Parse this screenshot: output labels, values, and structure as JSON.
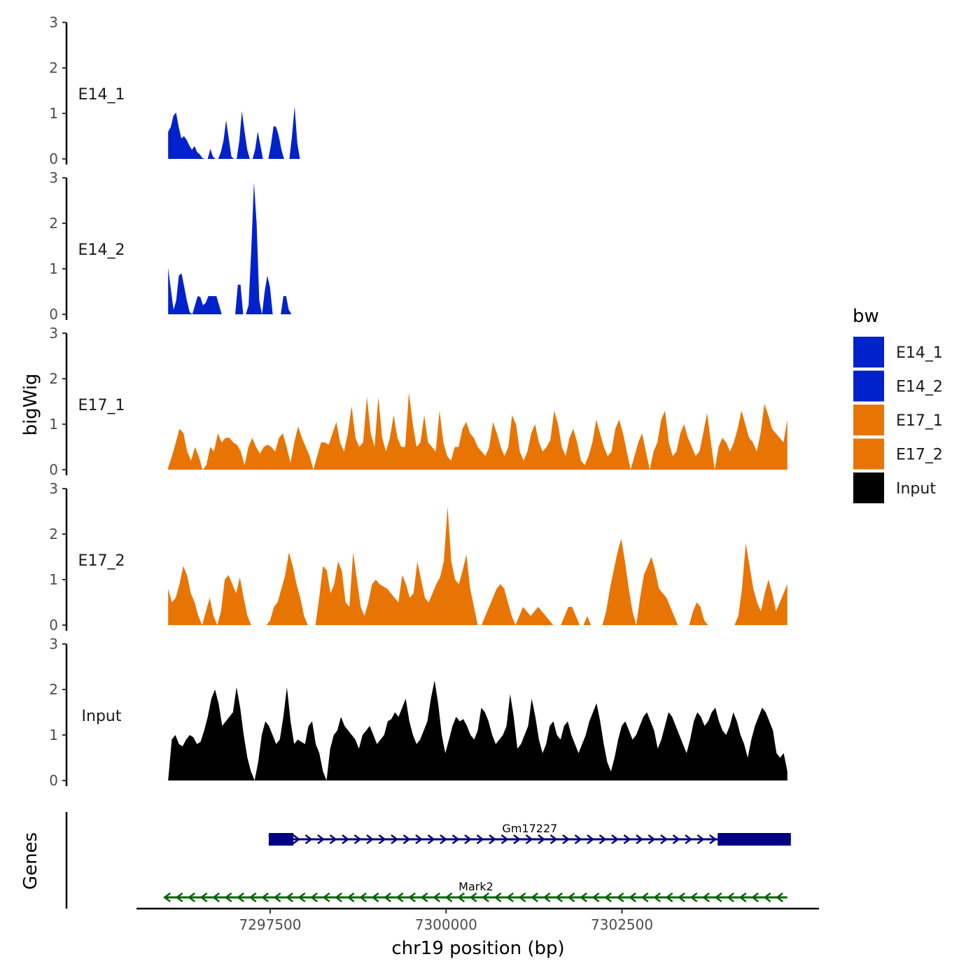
{
  "chart_data": {
    "type": "area",
    "ylabel": "bigWig",
    "xlabel": "chr19 position (bp)",
    "genes_label": "Genes",
    "xlim": [
      7295600,
      7305300
    ],
    "x_ticks": [
      7297500,
      7300000,
      7302500
    ],
    "x_tick_labels": [
      "7297500",
      "7300000",
      "7302500"
    ],
    "ylim": [
      0,
      3
    ],
    "y_ticks": [
      0,
      1,
      2,
      3
    ],
    "y_tick_labels": [
      "0",
      "1",
      "2",
      "3"
    ],
    "x_start": 7296050,
    "x_end": 7304850,
    "tracks": [
      {
        "name": "E14_1",
        "color": "#0022CC",
        "values": [
          0.6,
          0.7,
          0.95,
          1.02,
          0.7,
          0.45,
          0.5,
          0.42,
          0.3,
          0.2,
          0.28,
          0.15,
          0.1,
          0.02,
          0.0,
          0.0,
          0.22,
          0.05,
          0.0,
          0.0,
          0.15,
          0.4,
          0.85,
          0.45,
          0.05,
          0.0,
          0.0,
          0.4,
          1.05,
          0.6,
          0.2,
          0.0,
          0.0,
          0.2,
          0.6,
          0.3,
          0.0,
          0.0,
          0.0,
          0.3,
          0.72,
          0.7,
          0.5,
          0.2,
          0.0,
          0.0,
          0.0,
          0.5,
          1.15,
          0.35,
          0.0,
          0.0,
          0.0,
          0.0,
          0.0,
          0.0,
          0.0,
          0.0,
          0.0,
          0.0,
          0.0,
          0.0,
          0.0,
          0.0,
          0.0,
          0.0,
          0.0,
          0.0,
          0.0,
          0.0,
          0.0,
          0.0,
          0.0,
          0.0,
          0.0,
          0.0,
          0.0,
          0.0,
          0.0,
          0.0,
          0.0,
          0.0,
          0.0,
          0.0,
          0.0,
          0.0,
          0.0,
          0.0,
          0.0,
          0.0,
          0.0,
          0.0,
          0.0,
          0.0,
          0.0,
          0.0,
          0.0,
          0.0,
          0.0,
          0.0,
          0.0,
          0.0,
          0.0,
          0.0,
          0.0,
          0.0,
          0.0,
          0.0,
          0.0,
          0.0,
          0.0,
          0.0,
          0.0,
          0.0,
          0.0,
          0.0,
          0.0,
          0.0,
          0.0,
          0.0,
          0.0,
          0.0,
          0.0,
          0.0,
          0.0,
          0.0,
          0.0,
          0.0,
          0.0,
          0.0,
          0.0,
          0.0,
          0.0,
          0.0,
          0.0,
          0.0,
          0.0,
          0.0,
          0.0,
          0.0,
          0.0,
          0.0,
          0.0,
          0.0,
          0.0,
          0.0,
          0.0,
          0.0,
          0.0,
          0.0,
          0.0,
          0.0,
          0.0,
          0.0,
          0.0,
          0.0,
          0.0,
          0.0,
          0.0,
          0.0,
          0.0,
          0.0,
          0.0,
          0.0,
          0.0,
          0.0,
          0.0,
          0.0,
          0.0,
          0.0,
          0.0,
          0.0,
          0.0,
          0.0,
          0.0,
          0.0,
          0.0,
          0.0,
          0.0,
          0.0,
          0.0,
          0.0,
          0.0,
          0.0,
          0.0,
          0.0,
          0.0,
          0.0,
          0.0,
          0.0,
          0.0,
          0.0,
          0.0,
          0.0,
          0.0,
          0.0,
          0.0,
          0.0,
          0.0,
          0.0,
          0.0,
          0.0,
          0.0,
          0.0,
          0.0,
          0.0,
          0.0,
          0.0,
          0.0,
          0.0,
          0.0,
          0.0,
          0.0,
          0.0,
          0.0,
          0.0,
          0.0,
          0.0,
          0.0,
          0.0,
          0.0,
          0.0,
          0.0,
          0.0,
          0.0,
          0.0,
          0.0,
          0.0,
          0.0,
          0.0,
          0.0,
          0.0,
          0.0,
          0.0,
          0.0,
          0.0
        ]
      },
      {
        "name": "E14_2",
        "color": "#0022CC",
        "values": [
          1.02,
          0.55,
          0.1,
          0.3,
          0.85,
          0.9,
          0.6,
          0.3,
          0.05,
          0.0,
          0.2,
          0.4,
          0.38,
          0.2,
          0.25,
          0.4,
          0.4,
          0.4,
          0.4,
          0.2,
          0.0,
          0.0,
          0.0,
          0.0,
          0.0,
          0.0,
          0.65,
          0.65,
          0.0,
          0.0,
          0.2,
          1.4,
          2.9,
          2.0,
          0.3,
          0.0,
          0.5,
          0.85,
          0.6,
          0.0,
          0.0,
          0.0,
          0.0,
          0.4,
          0.4,
          0.1,
          0.0,
          0.0,
          0.0,
          0.0,
          0.0,
          0.0,
          0.0,
          0.0,
          0.0,
          0.0,
          0.0,
          0.0,
          0.0,
          0.0,
          0.0,
          0.0,
          0.0,
          0.0,
          0.0,
          0.0,
          0.0,
          0.0,
          0.0,
          0.0,
          0.0,
          0.0,
          0.0,
          0.0,
          0.0,
          0.0,
          0.0,
          0.0,
          0.0,
          0.0,
          0.0,
          0.0,
          0.0,
          0.0,
          0.0,
          0.0,
          0.0,
          0.0,
          0.0,
          0.0,
          0.0,
          0.0,
          0.0,
          0.0,
          0.0,
          0.0,
          0.0,
          0.0,
          0.0,
          0.0,
          0.0,
          0.0,
          0.0,
          0.0,
          0.0,
          0.0,
          0.0,
          0.0,
          0.0,
          0.0,
          0.0,
          0.0,
          0.0,
          0.0,
          0.0,
          0.0,
          0.0,
          0.0,
          0.0,
          0.0,
          0.0,
          0.0,
          0.0,
          0.0,
          0.0,
          0.0,
          0.0,
          0.0,
          0.0,
          0.0,
          0.0,
          0.0,
          0.0,
          0.0,
          0.0,
          0.0,
          0.0,
          0.0,
          0.0,
          0.0,
          0.0,
          0.0,
          0.0,
          0.0,
          0.0,
          0.0,
          0.0,
          0.0,
          0.0,
          0.0,
          0.0,
          0.0,
          0.0,
          0.0,
          0.0,
          0.0,
          0.0,
          0.0,
          0.0,
          0.0,
          0.0,
          0.0,
          0.0,
          0.0,
          0.0,
          0.0,
          0.0,
          0.0,
          0.0,
          0.0,
          0.0,
          0.0,
          0.0,
          0.0,
          0.0,
          0.0,
          0.0,
          0.0,
          0.0,
          0.0,
          0.0,
          0.0,
          0.0,
          0.0,
          0.0,
          0.0,
          0.0,
          0.0,
          0.0,
          0.0,
          0.0,
          0.0,
          0.0,
          0.0,
          0.0,
          0.0,
          0.0,
          0.0,
          0.0,
          0.0,
          0.0,
          0.0,
          0.0,
          0.0,
          0.0,
          0.0,
          0.0,
          0.0,
          0.0,
          0.0,
          0.0,
          0.0,
          0.0,
          0.0,
          0.0,
          0.0,
          0.0,
          0.0,
          0.0,
          0.0,
          0.0,
          0.0,
          0.0,
          0.0,
          0.0,
          0.0,
          0.0,
          0.0,
          0.0,
          0.0,
          0.0,
          0.0
        ]
      },
      {
        "name": "E17_1",
        "color": "#E87503",
        "values": [
          0.05,
          0.3,
          0.6,
          0.9,
          0.8,
          0.4,
          0.2,
          0.5,
          0.3,
          0.0,
          0.1,
          0.5,
          0.4,
          0.8,
          0.6,
          0.7,
          0.7,
          0.6,
          0.55,
          0.4,
          0.1,
          0.5,
          0.7,
          0.5,
          0.35,
          0.5,
          0.55,
          0.5,
          0.4,
          0.7,
          0.8,
          0.5,
          0.15,
          0.6,
          0.95,
          0.7,
          0.5,
          0.3,
          0.0,
          0.3,
          0.6,
          0.6,
          0.55,
          0.8,
          1.05,
          0.6,
          0.4,
          0.8,
          1.4,
          0.7,
          0.5,
          0.6,
          1.6,
          0.8,
          0.5,
          1.6,
          0.7,
          0.4,
          0.7,
          1.2,
          0.7,
          0.5,
          0.5,
          1.7,
          1.0,
          0.5,
          0.6,
          1.2,
          0.6,
          0.5,
          0.4,
          1.3,
          0.6,
          0.3,
          0.2,
          0.5,
          0.5,
          0.9,
          1.05,
          0.8,
          0.7,
          0.5,
          0.4,
          0.3,
          0.5,
          1.05,
          0.8,
          0.5,
          0.3,
          0.5,
          1.2,
          1.0,
          0.4,
          0.2,
          0.4,
          0.8,
          1.0,
          0.6,
          0.4,
          0.5,
          0.65,
          1.3,
          1.0,
          0.5,
          0.3,
          0.7,
          0.9,
          0.6,
          0.2,
          0.1,
          0.3,
          0.6,
          1.1,
          0.8,
          0.5,
          0.3,
          0.4,
          0.9,
          1.1,
          0.8,
          0.4,
          0.0,
          0.3,
          0.6,
          0.8,
          0.4,
          0.0,
          0.4,
          0.6,
          1.1,
          1.3,
          0.6,
          0.3,
          0.4,
          0.8,
          1.0,
          0.7,
          0.5,
          0.3,
          0.4,
          0.8,
          1.25,
          0.6,
          0.0,
          0.5,
          0.7,
          0.6,
          0.4,
          0.6,
          0.9,
          1.3,
          1.0,
          0.7,
          0.6,
          0.4,
          0.8,
          1.45,
          1.2,
          0.9,
          0.8,
          0.7,
          0.6,
          1.1
        ]
      },
      {
        "name": "E17_2",
        "color": "#E87503",
        "values": [
          0.8,
          0.5,
          0.6,
          0.9,
          1.3,
          1.1,
          0.7,
          0.5,
          0.2,
          0.0,
          0.3,
          0.6,
          0.2,
          0.0,
          0.3,
          1.0,
          1.1,
          0.9,
          0.7,
          1.05,
          0.6,
          0.2,
          0.0,
          0.0,
          0.0,
          0.0,
          0.0,
          0.1,
          0.4,
          0.5,
          0.8,
          1.1,
          1.6,
          1.3,
          0.9,
          0.6,
          0.2,
          0.0,
          0.0,
          0.0,
          0.6,
          1.3,
          1.2,
          0.7,
          0.9,
          1.4,
          1.2,
          0.5,
          0.4,
          1.6,
          1.0,
          0.4,
          0.2,
          0.5,
          0.9,
          1.0,
          0.9,
          0.85,
          0.8,
          0.7,
          0.6,
          0.5,
          1.1,
          0.9,
          0.6,
          0.7,
          1.4,
          1.0,
          0.6,
          0.5,
          0.7,
          0.9,
          1.05,
          1.4,
          2.6,
          1.4,
          1.0,
          0.9,
          1.2,
          1.55,
          0.8,
          0.4,
          0.0,
          0.0,
          0.2,
          0.4,
          0.6,
          0.8,
          0.9,
          0.8,
          0.5,
          0.2,
          0.0,
          0.2,
          0.4,
          0.3,
          0.2,
          0.3,
          0.4,
          0.3,
          0.2,
          0.1,
          0.0,
          0.0,
          0.0,
          0.2,
          0.4,
          0.4,
          0.2,
          0.0,
          0.0,
          0.2,
          0.0,
          0.0,
          0.0,
          0.0,
          0.3,
          0.8,
          1.2,
          1.6,
          1.9,
          1.4,
          0.8,
          0.3,
          0.0,
          0.6,
          1.1,
          1.3,
          1.5,
          1.2,
          0.8,
          0.7,
          0.6,
          0.4,
          0.2,
          0.0,
          0.0,
          0.0,
          0.0,
          0.3,
          0.5,
          0.4,
          0.1,
          0.0,
          0.0,
          0.0,
          0.0,
          0.0,
          0.0,
          0.0,
          0.0,
          0.2,
          0.8,
          1.8,
          1.3,
          0.8,
          0.5,
          0.3,
          0.7,
          1.0,
          0.7,
          0.3,
          0.5,
          0.7,
          0.9
        ]
      },
      {
        "name": "Input",
        "color": "#000000",
        "values": [
          0.0,
          0.9,
          1.0,
          0.8,
          0.75,
          0.9,
          1.0,
          0.95,
          0.8,
          0.85,
          1.1,
          1.4,
          1.8,
          2.0,
          1.7,
          1.2,
          1.3,
          1.4,
          1.5,
          2.05,
          1.6,
          1.0,
          0.5,
          0.2,
          0.0,
          0.4,
          1.0,
          1.3,
          1.2,
          1.0,
          0.8,
          0.9,
          1.4,
          2.05,
          1.3,
          0.8,
          0.9,
          0.85,
          0.8,
          1.2,
          1.3,
          0.8,
          0.6,
          0.2,
          0.0,
          0.7,
          1.0,
          1.1,
          1.4,
          1.2,
          1.1,
          1.0,
          0.9,
          0.7,
          1.0,
          1.1,
          1.2,
          1.0,
          0.8,
          0.9,
          1.0,
          1.3,
          1.35,
          1.5,
          1.4,
          1.6,
          1.8,
          1.3,
          1.0,
          0.8,
          0.9,
          1.1,
          1.3,
          1.8,
          2.2,
          1.7,
          1.0,
          0.6,
          0.9,
          1.2,
          1.4,
          1.3,
          1.35,
          1.2,
          1.0,
          0.9,
          1.1,
          1.6,
          1.5,
          1.3,
          1.0,
          0.8,
          0.9,
          1.0,
          1.2,
          1.9,
          1.4,
          0.7,
          0.8,
          1.0,
          1.2,
          1.8,
          1.4,
          0.9,
          0.6,
          0.8,
          1.2,
          1.3,
          1.0,
          0.9,
          1.2,
          1.3,
          1.0,
          0.8,
          0.6,
          0.8,
          1.0,
          1.3,
          1.5,
          1.7,
          1.3,
          0.8,
          0.4,
          0.2,
          0.5,
          0.9,
          1.2,
          1.3,
          1.1,
          0.9,
          1.0,
          1.2,
          1.4,
          1.5,
          1.3,
          1.1,
          0.7,
          0.9,
          1.2,
          1.5,
          1.4,
          1.2,
          1.0,
          0.8,
          0.6,
          0.9,
          1.3,
          1.5,
          1.4,
          1.2,
          1.3,
          1.5,
          1.6,
          1.3,
          1.1,
          1.0,
          1.2,
          1.5,
          1.3,
          1.0,
          0.8,
          0.5,
          0.9,
          1.2,
          1.4,
          1.6,
          1.5,
          1.3,
          1.1,
          0.6,
          0.5,
          0.6,
          0.2
        ]
      }
    ],
    "genes": [
      {
        "name": "Gm17227",
        "strand": "+",
        "start": 7297480,
        "end": 7304900,
        "color": "#000080",
        "exons": [
          [
            7297480,
            7297830
          ],
          [
            7303860,
            7304900
          ]
        ]
      },
      {
        "name": "Mark2",
        "strand": "-",
        "start": 7296000,
        "end": 7304850,
        "color": "#006400",
        "exons": []
      }
    ],
    "legend": {
      "title": "bw",
      "items": [
        {
          "label": "E14_1",
          "color": "#0022CC"
        },
        {
          "label": "E14_2",
          "color": "#0022CC"
        },
        {
          "label": "E17_1",
          "color": "#E87503"
        },
        {
          "label": "E17_2",
          "color": "#E87503"
        },
        {
          "label": "Input",
          "color": "#000000"
        }
      ]
    }
  }
}
